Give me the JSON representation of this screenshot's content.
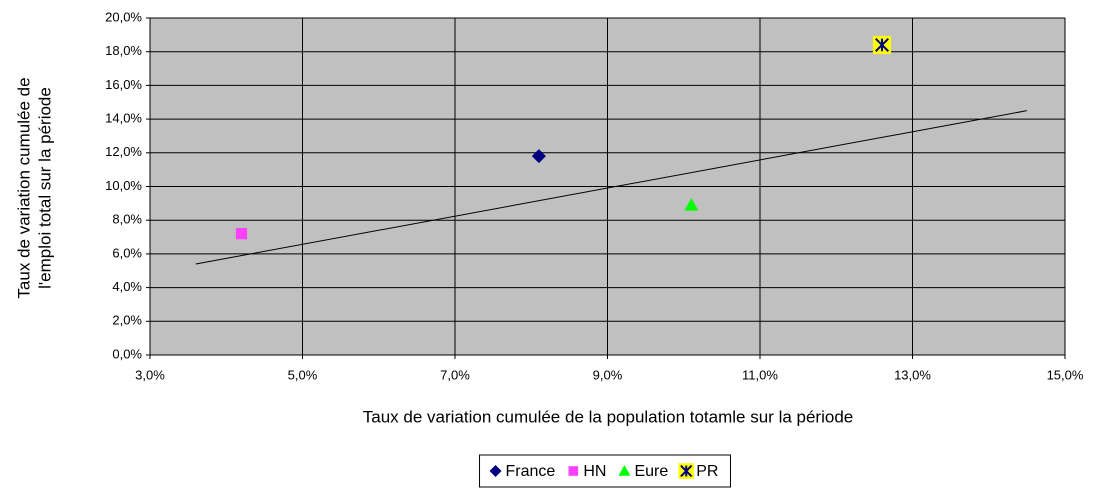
{
  "chart_data": {
    "type": "scatter",
    "x_label": "Taux de variation cumulée de la population totamle sur la période",
    "y_label": [
      "Taux de variation cumulée de",
      "l'emploi total sur la période"
    ],
    "xlim": [
      3,
      15
    ],
    "xticks": [
      {
        "value": 3,
        "label": "3,0%"
      },
      {
        "value": 5,
        "label": "5,0%"
      },
      {
        "value": 7,
        "label": "7,0%"
      },
      {
        "value": 9,
        "label": "9,0%"
      },
      {
        "value": 11,
        "label": "11,0%"
      },
      {
        "value": 13,
        "label": "13,0%"
      },
      {
        "value": 15,
        "label": "15,0%"
      }
    ],
    "ylim": [
      0,
      20
    ],
    "yticks": [
      {
        "value": 0,
        "label": "0,0%"
      },
      {
        "value": 2,
        "label": "2,0%"
      },
      {
        "value": 4,
        "label": "4,0%"
      },
      {
        "value": 6,
        "label": "6,0%"
      },
      {
        "value": 8,
        "label": "8,0%"
      },
      {
        "value": 10,
        "label": "10,0%"
      },
      {
        "value": 12,
        "label": "12,0%"
      },
      {
        "value": 14,
        "label": "14,0%"
      },
      {
        "value": 16,
        "label": "16,0%"
      },
      {
        "value": 18,
        "label": "18,0%"
      },
      {
        "value": 20,
        "label": "20,0%"
      }
    ],
    "grid": true,
    "legend": "bottom",
    "series": [
      {
        "name": "France",
        "color": "#000080",
        "marker": "diamond",
        "x": [
          8.1
        ],
        "values": [
          11.8
        ]
      },
      {
        "name": "HN",
        "color": "#ff40ff",
        "marker": "square",
        "x": [
          4.2
        ],
        "values": [
          7.2
        ]
      },
      {
        "name": "Eure",
        "color": "#00ff00",
        "marker": "triangle",
        "x": [
          10.1
        ],
        "values": [
          8.9
        ]
      },
      {
        "name": "PR",
        "color": "#ffff00",
        "marker": "star",
        "x": [
          12.6
        ],
        "values": [
          18.4
        ]
      }
    ],
    "trendline": {
      "x": [
        3.6,
        14.5
      ],
      "values": [
        5.4,
        14.5
      ]
    }
  }
}
